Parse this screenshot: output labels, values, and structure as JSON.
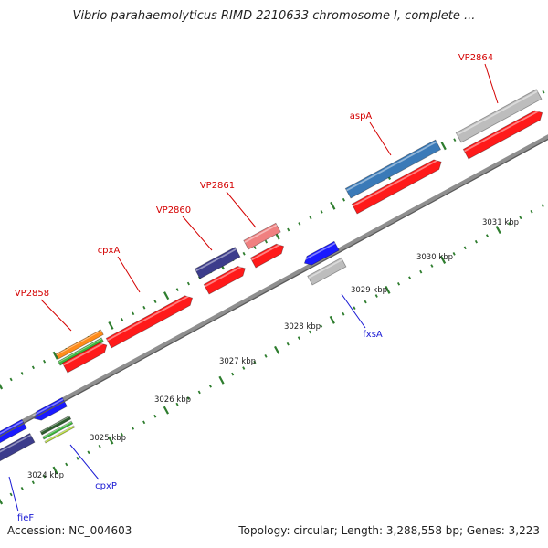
{
  "title": "Vibrio parahaemolyticus RIMD 2210633 chromosome I, complete ...",
  "footer": {
    "accession": "Accession: NC_004603",
    "summary": "Topology: circular; Length: 3,288,558 bp; Genes: 3,223"
  },
  "colors": {
    "backbone": "#8f8f8f",
    "tick": "#2e7d2e",
    "label_top": "#d40000",
    "label_bottom": "#1a1ad4",
    "red": "#ff1a1a",
    "blue": "#1a1aff",
    "slate": "#3c3c8c",
    "steel": "#3a7ab8",
    "grey": "#bdbdbd",
    "pink": "#f08080",
    "orange": "#ff8c1a",
    "green": "#3cb83c",
    "darkgreen": "#2e5e2e",
    "lime": "#b8e02e"
  },
  "scale_labels": [
    "3024 kbp",
    "3025 kbp",
    "3026 kbp",
    "3027 kbp",
    "3028 kbp",
    "3029 kbp",
    "3030 kbp",
    "3031 kbp"
  ],
  "top_labels": [
    "VP2858",
    "cpxA",
    "VP2860",
    "VP2861",
    "aspA",
    "VP2864"
  ],
  "bottom_labels": [
    "fxsA",
    "cpxP",
    "fieF"
  ]
}
